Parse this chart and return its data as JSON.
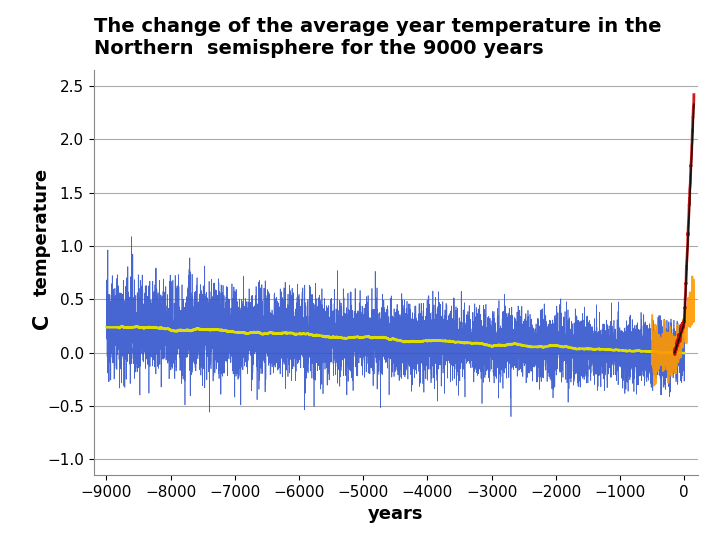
{
  "title_line1": "The change of the average year temperature in the",
  "title_line2": "Northern  semisphere for the 9000 years",
  "xlabel": "years",
  "ylabel_top": "temperature",
  "ylabel_bottom": "C",
  "xlim": [
    -9200,
    220
  ],
  "ylim": [
    -1.15,
    2.65
  ],
  "yticks": [
    -1.0,
    -0.5,
    0.0,
    0.5,
    1.0,
    1.5,
    2.0,
    2.5
  ],
  "xticks": [
    -9000,
    -8000,
    -7000,
    -6000,
    -5000,
    -4000,
    -3000,
    -2000,
    -1000,
    0
  ],
  "background_color": "#ffffff",
  "plot_bg_color": "#ffffff",
  "blue_color": "#3355cc",
  "yellow_color": "#dddd00",
  "orange_color": "#ff9900",
  "red_color": "#cc0000",
  "black_color": "#111111",
  "grid_color": "#aaaaaa",
  "title_fontsize": 14,
  "label_fontsize": 13,
  "tick_fontsize": 11
}
